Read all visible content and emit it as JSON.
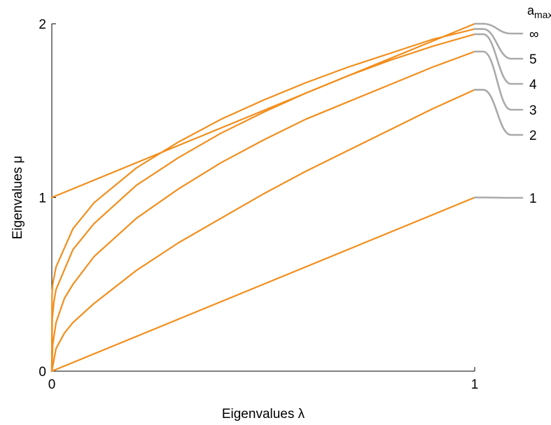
{
  "chart_data": {
    "type": "line",
    "title": "",
    "xlabel": "Eigenvalues λ",
    "ylabel": "Eigenvalues μ",
    "xlim": [
      0,
      1
    ],
    "ylim": [
      0,
      2
    ],
    "xticks": [
      "0",
      "1"
    ],
    "yticks": [
      "0",
      "1",
      "2"
    ],
    "grid": false,
    "legend": {
      "placement": "right",
      "title_main": "a",
      "title_sub": "max"
    },
    "series": [
      {
        "name": "∞",
        "x": [
          0,
          1
        ],
        "y": [
          1,
          2
        ]
      },
      {
        "name": "5",
        "x": [
          0,
          0.0005,
          0.002,
          0.01,
          0.05,
          0.1,
          0.2,
          0.3,
          0.4,
          0.5,
          0.6,
          0.7,
          0.8,
          0.9,
          1
        ],
        "y": [
          0,
          0.44,
          0.5,
          0.6,
          0.82,
          0.97,
          1.17,
          1.32,
          1.45,
          1.56,
          1.66,
          1.75,
          1.83,
          1.91,
          1.97
        ]
      },
      {
        "name": "4",
        "x": [
          0,
          0.001,
          0.005,
          0.01,
          0.05,
          0.1,
          0.2,
          0.3,
          0.4,
          0.5,
          0.6,
          0.7,
          0.8,
          0.9,
          1
        ],
        "y": [
          0,
          0.3,
          0.4,
          0.47,
          0.7,
          0.85,
          1.07,
          1.23,
          1.37,
          1.49,
          1.6,
          1.7,
          1.79,
          1.87,
          1.94
        ]
      },
      {
        "name": "3",
        "x": [
          0,
          0.002,
          0.01,
          0.03,
          0.05,
          0.1,
          0.2,
          0.3,
          0.4,
          0.5,
          0.6,
          0.7,
          0.8,
          0.9,
          1
        ],
        "y": [
          0,
          0.15,
          0.28,
          0.42,
          0.5,
          0.66,
          0.88,
          1.05,
          1.2,
          1.33,
          1.45,
          1.55,
          1.65,
          1.75,
          1.84
        ]
      },
      {
        "name": "2",
        "x": [
          0,
          0.01,
          0.03,
          0.05,
          0.1,
          0.2,
          0.3,
          0.4,
          0.5,
          0.6,
          0.7,
          0.8,
          0.9,
          1
        ],
        "y": [
          0,
          0.13,
          0.22,
          0.28,
          0.39,
          0.58,
          0.74,
          0.88,
          1.02,
          1.15,
          1.27,
          1.39,
          1.51,
          1.62
        ]
      },
      {
        "name": "1",
        "x": [
          0,
          1
        ],
        "y": [
          0,
          1
        ]
      }
    ]
  },
  "colors": {
    "curve": "#f28e1c",
    "connector": "#aaaaaa",
    "axis": "#000000"
  }
}
